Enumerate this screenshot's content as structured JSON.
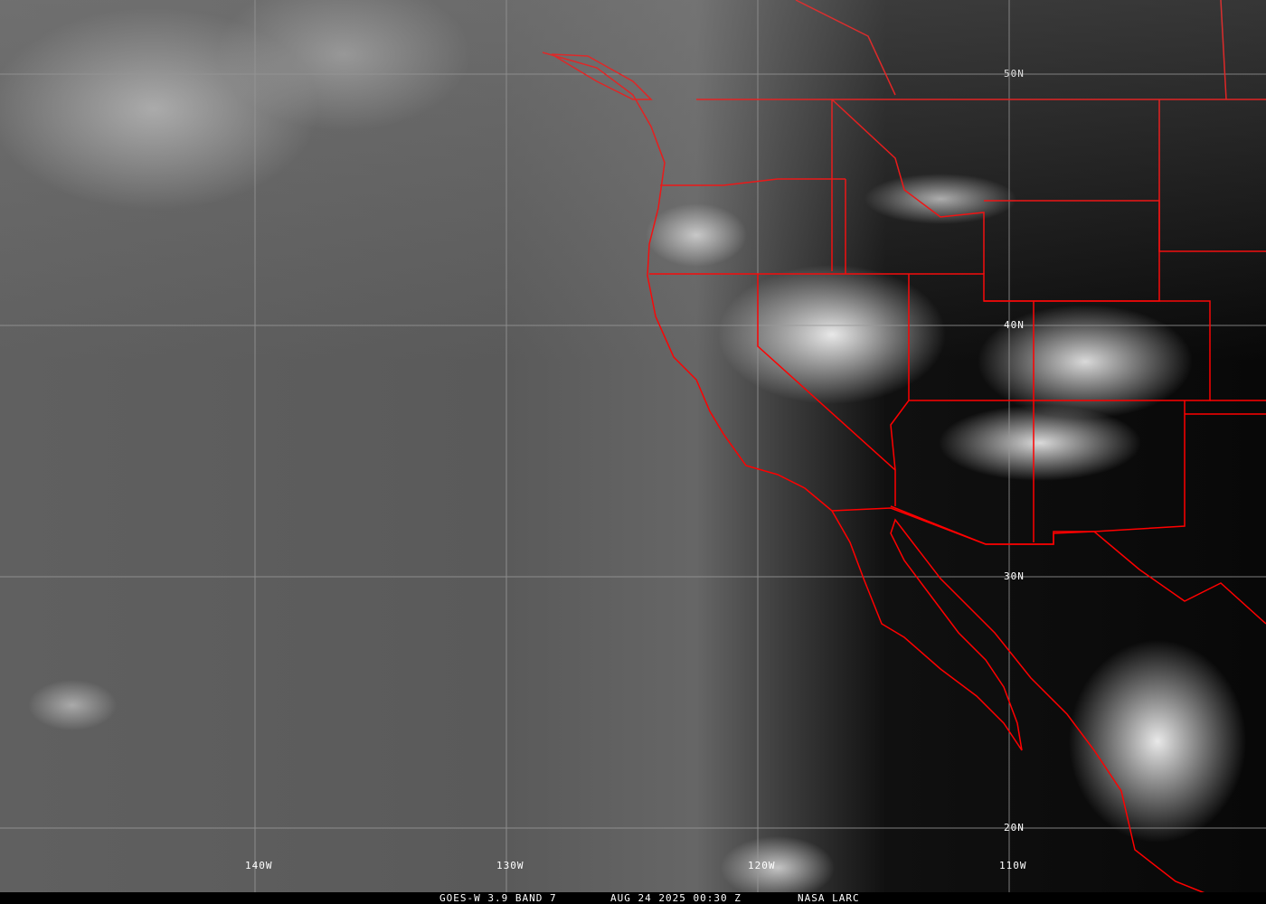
{
  "caption": {
    "product": "GOES-W 3.9 BAND 7",
    "datetime": "AUG 24 2025 00:30 Z",
    "credit": "NASA LARC"
  },
  "grid": {
    "lat_labels": [
      "50N",
      "40N",
      "30N",
      "20N"
    ],
    "lon_labels": [
      "140W",
      "130W",
      "120W",
      "110W"
    ]
  },
  "colors": {
    "borders": "#ff0000",
    "grid": "#9a9a9a",
    "labels": "#ffffff"
  }
}
